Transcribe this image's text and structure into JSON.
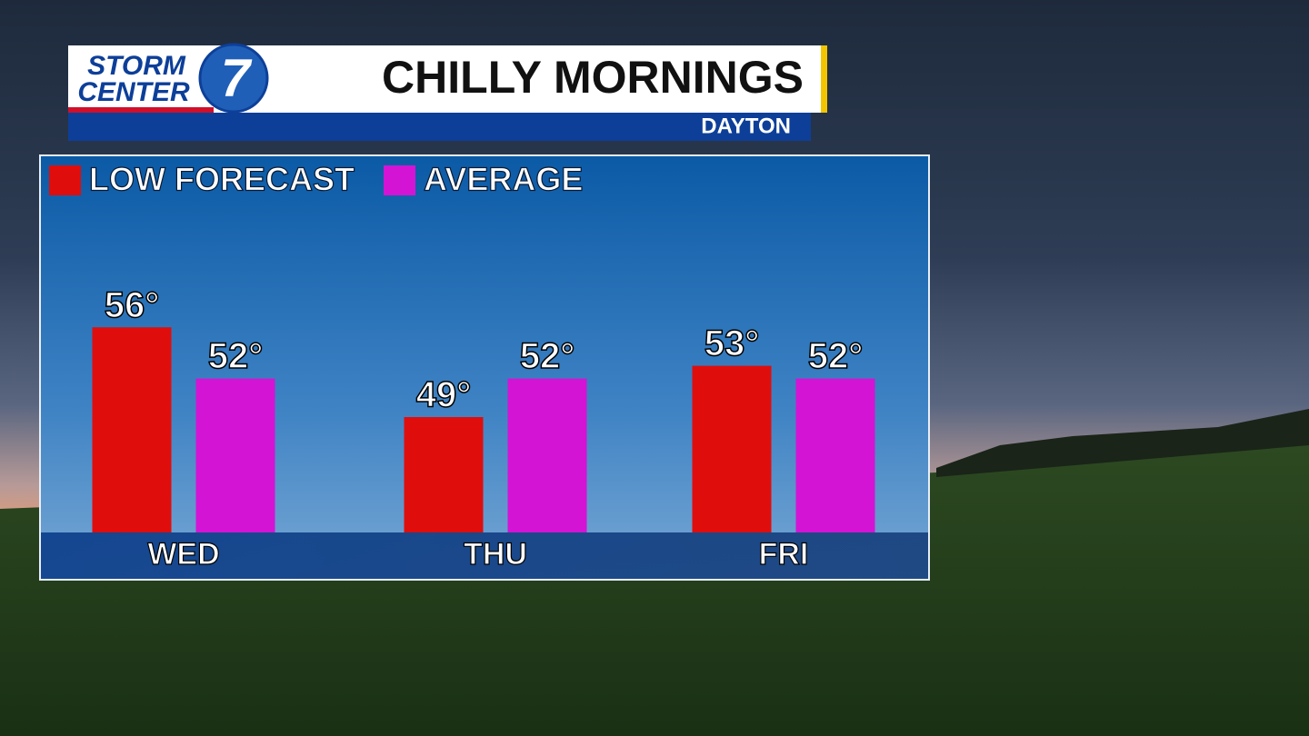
{
  "chart_data": {
    "type": "bar",
    "title": "CHILLY MORNINGS",
    "subtitle": "DAYTON",
    "brand": {
      "line1": "STORM",
      "line2": "CENTER",
      "number": "7"
    },
    "categories": [
      "WED",
      "THU",
      "FRI"
    ],
    "series": [
      {
        "name": "LOW FORECAST",
        "color": "#e00d0d",
        "values": [
          56,
          49,
          53
        ],
        "value_labels": [
          "56°",
          "49°",
          "53°"
        ]
      },
      {
        "name": "AVERAGE",
        "color": "#d414d4",
        "values": [
          52,
          52,
          52
        ],
        "value_labels": [
          "52°",
          "52°",
          "52°"
        ]
      }
    ],
    "ylim": [
      40,
      58
    ]
  }
}
